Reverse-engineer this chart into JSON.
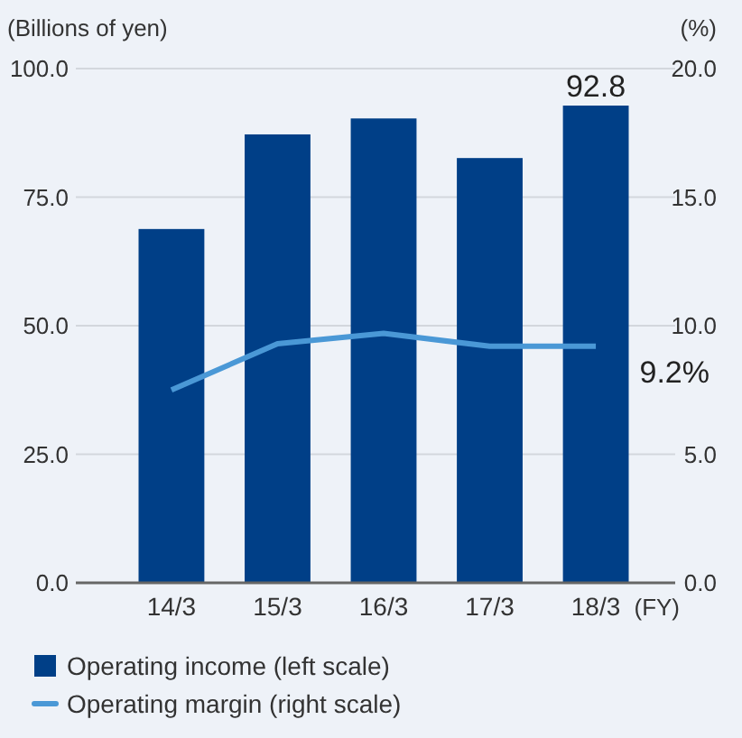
{
  "chart_data": {
    "type": "bar",
    "categories": [
      "14/3",
      "15/3",
      "16/3",
      "17/3",
      "18/3"
    ],
    "xlabel": "(FY)",
    "ylabel": "(Billions of yen)",
    "y2label": "(%)",
    "series": [
      {
        "name": "Operating income (left scale)",
        "color": "#003f87",
        "values": [
          68.8,
          87.2,
          90.3,
          82.6,
          92.8
        ],
        "value_labels": [
          null,
          null,
          null,
          null,
          "92.8"
        ]
      },
      {
        "name": "Operating margin (right scale)",
        "type": "line",
        "axis": "y2",
        "color": "#4a98d6",
        "values": [
          7.5,
          9.3,
          9.7,
          9.2,
          9.2
        ],
        "value_labels": [
          null,
          null,
          null,
          null,
          "9.2%"
        ]
      }
    ],
    "ylim": [
      0,
      100
    ],
    "yticks": [
      {
        "value": 0,
        "label": "0.0"
      },
      {
        "value": 25,
        "label": "25.0"
      },
      {
        "value": 50,
        "label": "50.0"
      },
      {
        "value": 75,
        "label": "75.0"
      },
      {
        "value": 100,
        "label": "100.0"
      }
    ],
    "y2lim": [
      0,
      20
    ],
    "y2ticks": [
      {
        "value": 0,
        "label": "0.0"
      },
      {
        "value": 5,
        "label": "5.0"
      },
      {
        "value": 10,
        "label": "10.0"
      },
      {
        "value": 15,
        "label": "15.0"
      },
      {
        "value": 20,
        "label": "20.0"
      }
    ],
    "grid": "y",
    "legend": "bottom",
    "marker": "none",
    "line_style": "solid"
  }
}
